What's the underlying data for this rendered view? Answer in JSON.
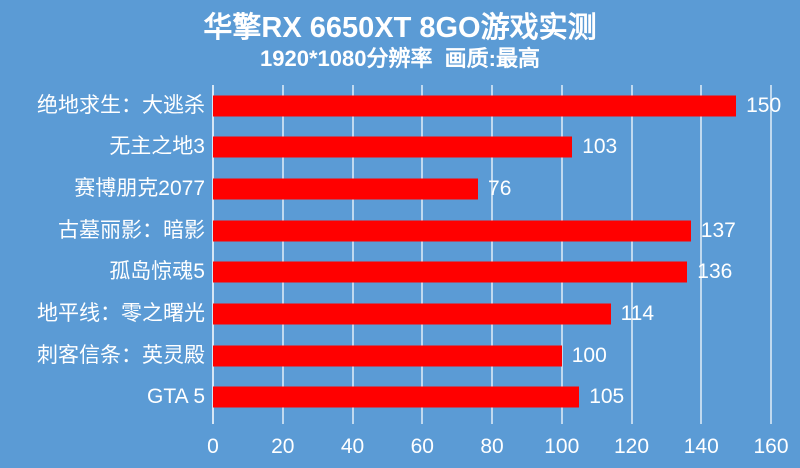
{
  "colors": {
    "background": "#5B9BD5",
    "bar": "#FF0000",
    "gridline": "rgba(255,255,255,0.62)",
    "axis_line": "rgba(255,255,255,0.75)",
    "text": "#FFFFFF"
  },
  "header": {
    "title": "华擎RX 6650XT 8GO游戏实测",
    "subtitle": "1920*1080分辨率  画质:最高"
  },
  "chart_data": {
    "type": "bar",
    "orientation": "horizontal",
    "title": "华擎RX 6650XT 8GO游戏实测",
    "subtitle": "1920*1080分辨率  画质:最高",
    "categories": [
      "绝地求生：大逃杀",
      "无主之地3",
      "赛博朋克2077",
      "古墓丽影：暗影",
      "孤岛惊魂5",
      "地平线：零之曙光",
      "刺客信条：英灵殿",
      "GTA 5"
    ],
    "values": [
      150,
      103,
      76,
      137,
      136,
      114,
      100,
      105
    ],
    "data_labels": [
      150,
      103,
      76,
      137,
      136,
      114,
      100,
      105
    ],
    "x_ticks": [
      0,
      20,
      40,
      60,
      80,
      100,
      120,
      140,
      160
    ],
    "xlabel": "",
    "ylabel": "",
    "xlim": [
      0,
      160
    ],
    "grid": "on",
    "legend": "none",
    "bar_color": "#FF0000",
    "background_color": "#5B9BD5"
  }
}
